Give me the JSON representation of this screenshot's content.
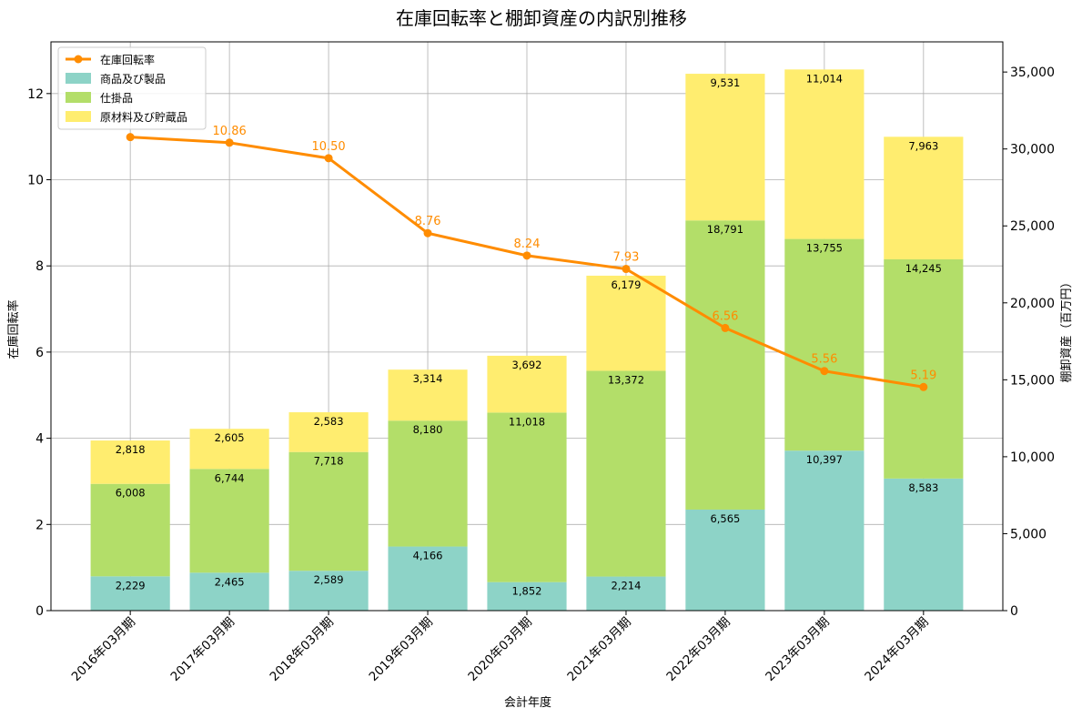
{
  "chart_data": {
    "type": "bar",
    "title": "在庫回転率と棚卸資産の内訳別推移",
    "xlabel": "会計年度",
    "ylabel": "在庫回転率",
    "ylabel_right": "棚卸資産（百万円）",
    "categories": [
      "2016年03月期",
      "2017年03月期",
      "2018年03月期",
      "2019年03月期",
      "2020年03月期",
      "2021年03月期",
      "2022年03月期",
      "2023年03月期",
      "2024年03月期"
    ],
    "series": [
      {
        "name": "商品及び製品",
        "color": "#8dd3c7",
        "axis": "right",
        "stacked": true,
        "values": [
          2229,
          2465,
          2589,
          4166,
          1852,
          2214,
          6565,
          10397,
          8583
        ]
      },
      {
        "name": "仕掛品",
        "color": "#b3de69",
        "axis": "right",
        "stacked": true,
        "values": [
          6008,
          6744,
          7718,
          8180,
          11018,
          13372,
          18791,
          13755,
          14245
        ]
      },
      {
        "name": "原材料及び貯蔵品",
        "color": "#ffed6f",
        "axis": "right",
        "stacked": true,
        "values": [
          2818,
          2605,
          2583,
          3314,
          3692,
          6179,
          9531,
          11014,
          7963
        ]
      },
      {
        "name": "在庫回転率",
        "color": "#ff8c00",
        "axis": "left",
        "type": "line",
        "values": [
          10.99,
          10.86,
          10.5,
          8.76,
          8.24,
          7.93,
          6.56,
          5.56,
          5.19
        ],
        "point_labels": [
          "",
          "10.86",
          "10.50",
          "8.76",
          "8.24",
          "7.93",
          "6.56",
          "5.56",
          "5.19"
        ]
      }
    ],
    "bar_labels": [
      [
        "2,229",
        "2,465",
        "2,589",
        "4,166",
        "1,852",
        "2,214",
        "6,565",
        "10,397",
        "8,583"
      ],
      [
        "6,008",
        "6,744",
        "7,718",
        "8,180",
        "11,018",
        "13,372",
        "18,791",
        "13,755",
        "14,245"
      ],
      [
        "2,818",
        "2,605",
        "2,583",
        "3,314",
        "3,692",
        "6,179",
        "9,531",
        "11,014",
        "7,963"
      ]
    ],
    "ylim_left": [
      0,
      13.2
    ],
    "ylim_right": [
      0,
      36960
    ],
    "yticks_left": [
      0,
      2,
      4,
      6,
      8,
      10,
      12
    ],
    "yticks_left_labels": [
      "0",
      "2",
      "4",
      "6",
      "8",
      "10",
      "12"
    ],
    "yticks_right": [
      0,
      5000,
      10000,
      15000,
      20000,
      25000,
      30000,
      35000
    ],
    "yticks_right_labels": [
      "0",
      "5,000",
      "10,000",
      "15,000",
      "20,000",
      "25,000",
      "30,000",
      "35,000"
    ],
    "legend_order": [
      "在庫回転率",
      "商品及び製品",
      "仕掛品",
      "原材料及び貯蔵品"
    ],
    "legend_position": "top-left",
    "grid": true
  }
}
